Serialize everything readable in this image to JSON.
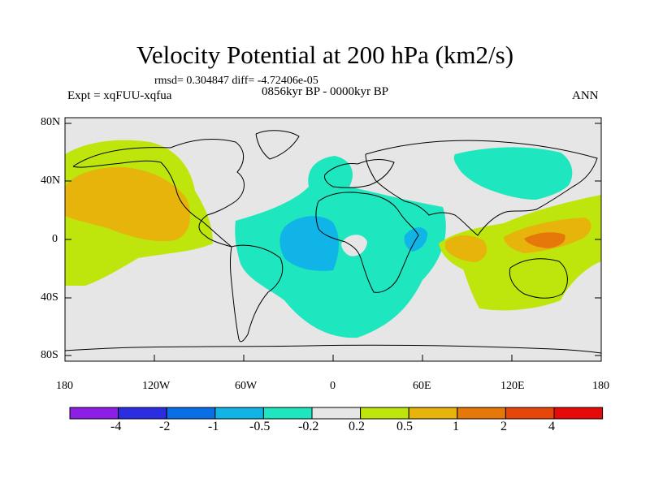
{
  "title": "Velocity Potential at 200 hPa (km2/s)",
  "stats": "rmsd= 0.304847 diff= -4.72406e-05",
  "expt": "Expt = xqFUU-xqfua",
  "period": "0856kyr BP - 0000kyr BP",
  "season": "ANN",
  "y_axis_labels": [
    "80N",
    "40N",
    "0",
    "40S",
    "80S"
  ],
  "x_axis_labels": [
    "180",
    "120W",
    "60W",
    "0",
    "60E",
    "120E",
    "180"
  ],
  "colorbar": {
    "colors": [
      "#8c1ee6",
      "#2a2ee0",
      "#0a6ee6",
      "#10b4e6",
      "#1ee6be",
      "#e6e6e6",
      "#bee60c",
      "#e6b40a",
      "#e6780a",
      "#e6460a",
      "#e60a0a"
    ],
    "labels": [
      "-4",
      "-2",
      "-1",
      "-0.5",
      "-0.2",
      "0.2",
      "0.5",
      "1",
      "2",
      "4"
    ]
  },
  "fields": {
    "background": "#e6e6e6",
    "neg_weak": "#1ee6be",
    "neg_mid": "#10b4e6",
    "pos_weak": "#bee60c",
    "pos_mid": "#e6b40a",
    "pos_strong": "#e6780a",
    "coast": "#000000"
  }
}
